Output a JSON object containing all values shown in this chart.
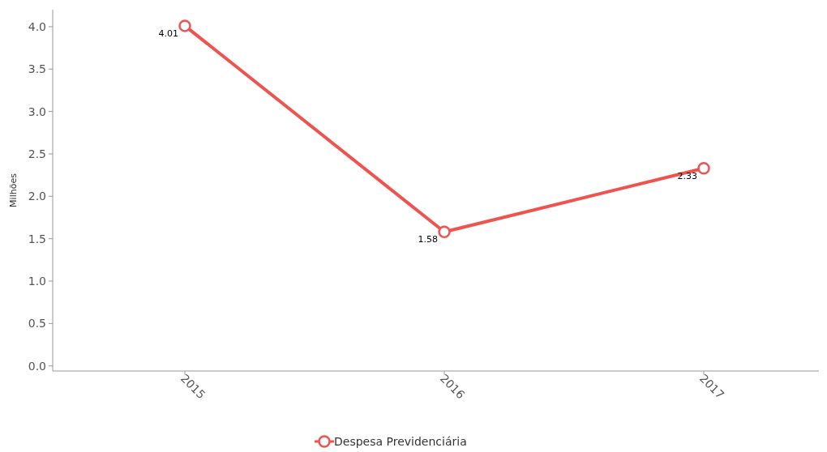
{
  "chart_data": {
    "type": "line",
    "ylabel": "Milhões",
    "categories": [
      "2015",
      "2016",
      "2017"
    ],
    "series": [
      {
        "name": "Despesa Previdenciária",
        "color": "#ef5350",
        "values": [
          4.01,
          1.58,
          2.33
        ]
      }
    ],
    "ylim": [
      -0.06,
      4.2
    ],
    "yticks": [
      {
        "value": 0,
        "label": "0.0"
      },
      {
        "value": 0.5,
        "label": "0.5"
      },
      {
        "value": 1,
        "label": "1.0"
      },
      {
        "value": 1.5,
        "label": "1.5"
      },
      {
        "value": 2,
        "label": "2.0"
      },
      {
        "value": 2.5,
        "label": "2.5"
      },
      {
        "value": 3,
        "label": "3.0"
      },
      {
        "value": 3.5,
        "label": "3.5"
      },
      {
        "value": 4,
        "label": "4.0"
      }
    ],
    "data_labels": true,
    "legend": "bottom",
    "marker": "circle",
    "grid": false
  }
}
